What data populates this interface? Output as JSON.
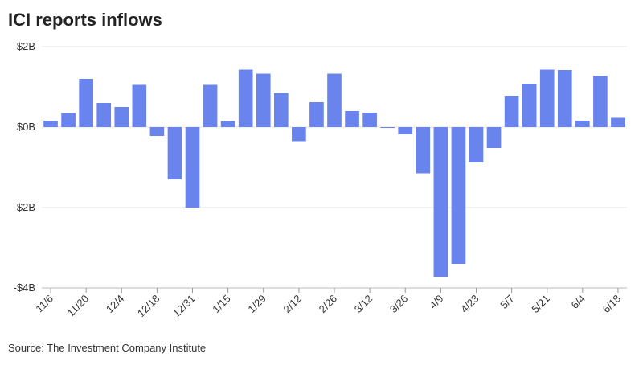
{
  "chart_data": {
    "type": "bar",
    "title": "ICI reports inflows",
    "source": "Source: The Investment Company Institute",
    "categories": [
      "11/6",
      null,
      "11/20",
      null,
      "12/4",
      null,
      "12/18",
      null,
      "12/31",
      null,
      "1/15",
      null,
      "1/29",
      null,
      "2/12",
      null,
      "2/26",
      null,
      "3/12",
      null,
      "3/26",
      null,
      "4/9",
      null,
      "4/23",
      null,
      "5/7",
      null,
      "5/21",
      null,
      "6/4",
      null,
      "6/18"
    ],
    "values": [
      0.16,
      0.35,
      1.2,
      0.6,
      0.5,
      1.05,
      -0.22,
      -1.3,
      -2.0,
      1.05,
      0.15,
      1.43,
      1.33,
      0.85,
      -0.35,
      0.62,
      1.33,
      0.4,
      0.36,
      -0.02,
      -0.18,
      -1.15,
      -3.72,
      -3.4,
      -0.88,
      -0.52,
      0.78,
      1.08,
      1.43,
      1.42,
      0.16,
      1.27,
      0.23
    ],
    "color": "#6a84ee",
    "ylim": [
      -4,
      2
    ],
    "yticks": [
      {
        "value": 2,
        "label": "$2B"
      },
      {
        "value": 0,
        "label": "$0B"
      },
      {
        "value": -2,
        "label": "-$2B"
      },
      {
        "value": -4,
        "label": "-$4B"
      }
    ],
    "grid": true
  }
}
